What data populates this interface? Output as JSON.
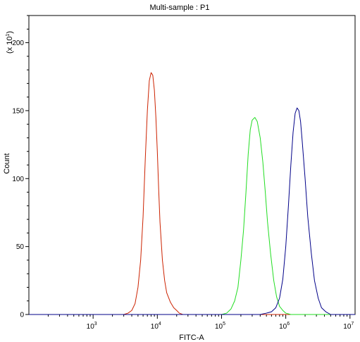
{
  "chart_data": {
    "type": "line",
    "title": "Multi-sample : P1",
    "xlabel": "FITC-A",
    "ylabel": "Count",
    "y_multiplier": "(x 10",
    "y_multiplier_exp": "1",
    "y_multiplier_close": ")",
    "x_scale": "log",
    "xlim": [
      100,
      12000000
    ],
    "ylim": [
      0,
      220
    ],
    "x_tick_labels": [
      {
        "base": "10",
        "exp": "3",
        "value": 1000
      },
      {
        "base": "10",
        "exp": "4",
        "value": 10000
      },
      {
        "base": "10",
        "exp": "5",
        "value": 100000
      },
      {
        "base": "10",
        "exp": "6",
        "value": 1000000
      },
      {
        "base": "10",
        "exp": "7",
        "value": 10000000
      }
    ],
    "y_ticks": [
      0,
      50,
      100,
      150,
      200
    ],
    "grid": false,
    "series": [
      {
        "color": "#cc2200",
        "points": [
          [
            100,
            0
          ],
          [
            3000,
            0
          ],
          [
            3500,
            1
          ],
          [
            4000,
            3
          ],
          [
            4500,
            8
          ],
          [
            5000,
            20
          ],
          [
            5500,
            40
          ],
          [
            6000,
            72
          ],
          [
            6500,
            115
          ],
          [
            7000,
            150
          ],
          [
            7500,
            172
          ],
          [
            8000,
            178
          ],
          [
            8500,
            176
          ],
          [
            9000,
            165
          ],
          [
            9500,
            145
          ],
          [
            10000,
            120
          ],
          [
            10500,
            92
          ],
          [
            11000,
            68
          ],
          [
            12000,
            40
          ],
          [
            13000,
            25
          ],
          [
            14000,
            16
          ],
          [
            16000,
            9
          ],
          [
            18000,
            5
          ],
          [
            20000,
            3
          ],
          [
            22000,
            1
          ],
          [
            25000,
            0
          ],
          [
            12000000,
            0
          ]
        ]
      },
      {
        "color": "#22dd22",
        "points": [
          [
            100,
            0
          ],
          [
            100000,
            0
          ],
          [
            120000,
            1
          ],
          [
            140000,
            4
          ],
          [
            160000,
            10
          ],
          [
            180000,
            20
          ],
          [
            200000,
            40
          ],
          [
            220000,
            62
          ],
          [
            240000,
            90
          ],
          [
            260000,
            118
          ],
          [
            280000,
            136
          ],
          [
            300000,
            143
          ],
          [
            330000,
            145
          ],
          [
            360000,
            142
          ],
          [
            400000,
            130
          ],
          [
            440000,
            112
          ],
          [
            480000,
            90
          ],
          [
            520000,
            68
          ],
          [
            580000,
            45
          ],
          [
            650000,
            25
          ],
          [
            720000,
            13
          ],
          [
            800000,
            6
          ],
          [
            900000,
            3
          ],
          [
            1000000,
            1
          ],
          [
            1200000,
            0
          ],
          [
            12000000,
            0
          ]
        ]
      },
      {
        "color": "#000088",
        "points": [
          [
            100,
            0
          ],
          [
            400000,
            0
          ],
          [
            500000,
            1
          ],
          [
            600000,
            2
          ],
          [
            700000,
            5
          ],
          [
            800000,
            12
          ],
          [
            900000,
            26
          ],
          [
            1000000,
            50
          ],
          [
            1100000,
            80
          ],
          [
            1200000,
            110
          ],
          [
            1300000,
            134
          ],
          [
            1400000,
            148
          ],
          [
            1500000,
            152
          ],
          [
            1600000,
            150
          ],
          [
            1700000,
            142
          ],
          [
            1800000,
            128
          ],
          [
            2000000,
            100
          ],
          [
            2200000,
            72
          ],
          [
            2500000,
            45
          ],
          [
            2800000,
            25
          ],
          [
            3200000,
            12
          ],
          [
            3600000,
            5
          ],
          [
            4200000,
            2
          ],
          [
            5000000,
            0
          ],
          [
            12000000,
            0
          ]
        ]
      }
    ]
  }
}
